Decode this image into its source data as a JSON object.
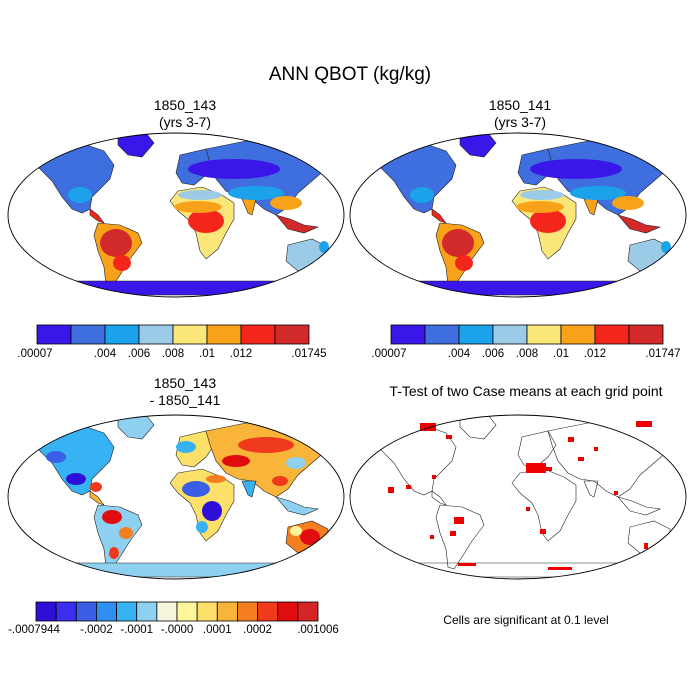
{
  "title": "ANN QBOT (kg/kg)",
  "panels": [
    {
      "id": "p1",
      "title_line1": "1850_143",
      "title_line2": "(yrs 3-7)"
    },
    {
      "id": "p2",
      "title_line1": "1850_141",
      "title_line2": "(yrs 3-7)"
    },
    {
      "id": "p3",
      "title_line1": "1850_143",
      "title_line2": "- 1850_141"
    },
    {
      "id": "p4",
      "title_line1": "T-Test of two Case means at each grid point"
    }
  ],
  "colorbars": {
    "cb1": {
      "colors": [
        "#3a17e8",
        "#3f6fdf",
        "#1ba2ea",
        "#9ccbe8",
        "#fbe67a",
        "#f8a21a",
        "#f4261c",
        "#d22a2a"
      ],
      "labels": [
        ".00007",
        ".004",
        ".006",
        ".008",
        ".01",
        ".012",
        ".01745"
      ],
      "label_bounds": [
        0,
        2,
        3,
        4,
        5,
        6,
        8
      ]
    },
    "cb2": {
      "colors": [
        "#3a17e8",
        "#3f6fdf",
        "#1ba2ea",
        "#9ccbe8",
        "#fbe67a",
        "#f8a21a",
        "#f4261c",
        "#d22a2a"
      ],
      "labels": [
        ".00007",
        ".004",
        ".006",
        ".008",
        ".01",
        ".012",
        ".01747"
      ],
      "label_bounds": [
        0,
        2,
        3,
        4,
        5,
        6,
        8
      ]
    },
    "cb3": {
      "colors": [
        "#2d0fd8",
        "#3b2ef0",
        "#3a5fe6",
        "#2f8ff0",
        "#37b3f3",
        "#8ed0f0",
        "#f5f5dc",
        "#fff59a",
        "#fde06a",
        "#f8b53a",
        "#f57f20",
        "#ef3a1c",
        "#e00c10",
        "#d42626"
      ],
      "labels": [
        "-.0007944",
        "-.0002",
        "-.0001",
        "-.0000",
        ".0001",
        ".0002",
        ".001006"
      ],
      "label_bounds": [
        0,
        3,
        5,
        7,
        9,
        11,
        14
      ]
    }
  },
  "significance_note": "Cells are significant at 0.1 level"
}
